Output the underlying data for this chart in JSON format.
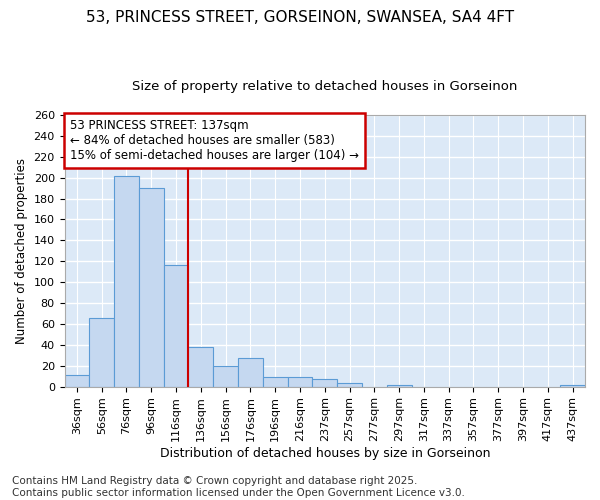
{
  "title_line1": "53, PRINCESS STREET, GORSEINON, SWANSEA, SA4 4FT",
  "title_line2": "Size of property relative to detached houses in Gorseinon",
  "xlabel": "Distribution of detached houses by size in Gorseinon",
  "ylabel": "Number of detached properties",
  "bar_color": "#c5d8f0",
  "bar_edge_color": "#5b9bd5",
  "background_color": "#dce9f7",
  "grid_color": "#ffffff",
  "annotation_box_color": "#cc0000",
  "vline_color": "#cc0000",
  "annotation_text": "53 PRINCESS STREET: 137sqm\n← 84% of detached houses are smaller (583)\n15% of semi-detached houses are larger (104) →",
  "categories": [
    "36sqm",
    "56sqm",
    "76sqm",
    "96sqm",
    "116sqm",
    "136sqm",
    "156sqm",
    "176sqm",
    "196sqm",
    "216sqm",
    "237sqm",
    "257sqm",
    "277sqm",
    "297sqm",
    "317sqm",
    "337sqm",
    "357sqm",
    "377sqm",
    "397sqm",
    "417sqm",
    "437sqm"
  ],
  "values": [
    11,
    66,
    202,
    190,
    116,
    38,
    20,
    27,
    9,
    9,
    7,
    3,
    0,
    2,
    0,
    0,
    0,
    0,
    0,
    0,
    2
  ],
  "vline_x": 4.5,
  "ylim": [
    0,
    260
  ],
  "yticks": [
    0,
    20,
    40,
    60,
    80,
    100,
    120,
    140,
    160,
    180,
    200,
    220,
    240,
    260
  ],
  "footnote": "Contains HM Land Registry data © Crown copyright and database right 2025.\nContains public sector information licensed under the Open Government Licence v3.0.",
  "footnote_fontsize": 7.5,
  "title_fontsize1": 11,
  "title_fontsize2": 9.5,
  "xlabel_fontsize": 9,
  "ylabel_fontsize": 8.5,
  "tick_fontsize": 8,
  "annotation_fontsize": 8.5
}
